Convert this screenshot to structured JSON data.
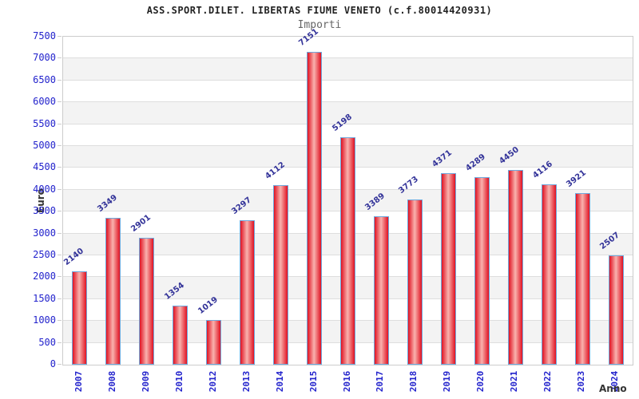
{
  "chart_data": {
    "type": "bar",
    "title": "ASS.SPORT.DILET. LIBERTAS FIUME VENETO (c.f.80014420931)",
    "subtitle": "Importi",
    "xlabel": "Anno",
    "ylabel": "Euro",
    "categories": [
      "2007",
      "2008",
      "2009",
      "2010",
      "2012",
      "2013",
      "2014",
      "2015",
      "2016",
      "2017",
      "2018",
      "2019",
      "2020",
      "2021",
      "2022",
      "2023",
      "2024"
    ],
    "values": [
      2140,
      3349,
      2901,
      1354,
      1019,
      3297,
      4112,
      7151,
      5198,
      3389,
      3773,
      4371,
      4289,
      4450,
      4116,
      3921,
      2507
    ],
    "ylim": [
      0,
      7500
    ],
    "ytick_step": 500,
    "grid": true,
    "legend": "none",
    "colors": {
      "bar_edge": "#e01222",
      "bar_center": "#f9b2ae",
      "bar_border": "#6fa8dc",
      "value_label": "#333399",
      "tick_label": "#2222cc",
      "axis_title": "#333333",
      "band": "#f3f3f3",
      "gridline": "#dedede",
      "plot_border": "#cccccc",
      "title": "#222222",
      "subtitle": "#666666"
    }
  }
}
